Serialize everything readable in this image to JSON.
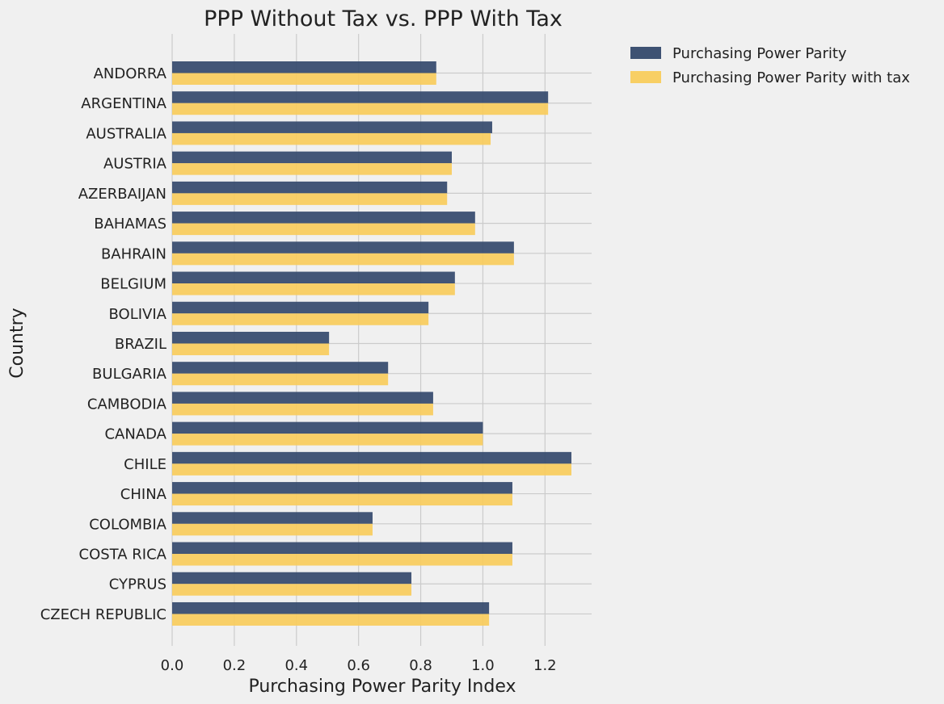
{
  "chart_data": {
    "type": "bar",
    "orientation": "horizontal",
    "title": "PPP Without Tax vs. PPP With Tax",
    "xlabel": "Purchasing Power Parity Index",
    "ylabel": "Country",
    "xlim": [
      0,
      1.35
    ],
    "xticks": [
      0.0,
      0.2,
      0.4,
      0.6,
      0.8,
      1.0,
      1.2
    ],
    "xtick_labels": [
      "0.0",
      "0.2",
      "0.4",
      "0.6",
      "0.8",
      "1.0",
      "1.2"
    ],
    "grid": true,
    "legend_position": "outside-top-right",
    "categories": [
      "ANDORRA",
      "ARGENTINA",
      "AUSTRALIA",
      "AUSTRIA",
      "AZERBAIJAN",
      "BAHAMAS",
      "BAHRAIN",
      "BELGIUM",
      "BOLIVIA",
      "BRAZIL",
      "BULGARIA",
      "CAMBODIA",
      "CANADA",
      "CHILE",
      "CHINA",
      "COLOMBIA",
      "COSTA RICA",
      "CYPRUS",
      "CZECH REPUBLIC"
    ],
    "series": [
      {
        "name": "Purchasing Power Parity",
        "color": "#34496c",
        "values": [
          0.85,
          1.21,
          1.03,
          0.9,
          0.885,
          0.975,
          1.1,
          0.91,
          0.825,
          0.505,
          0.695,
          0.84,
          1.0,
          1.285,
          1.095,
          0.645,
          1.095,
          0.77,
          1.02
        ]
      },
      {
        "name": "Purchasing Power Parity with tax",
        "color": "#f8cc5c",
        "values": [
          0.85,
          1.21,
          1.025,
          0.9,
          0.885,
          0.975,
          1.1,
          0.91,
          0.825,
          0.505,
          0.695,
          0.84,
          1.0,
          1.285,
          1.095,
          0.645,
          1.095,
          0.77,
          1.02
        ]
      }
    ]
  }
}
